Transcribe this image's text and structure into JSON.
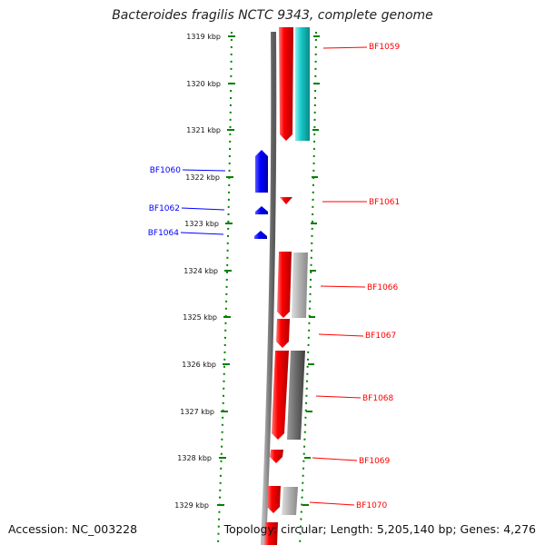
{
  "title": "Bacteroides fragilis NCTC 9343, complete genome",
  "footer": {
    "accession": "Accession: NC_003228",
    "summary": "Topology: circular; Length: 5,205,140 bp; Genes: 4,276"
  },
  "ruler": {
    "ticks": [
      "1319 kbp",
      "1320 kbp",
      "1321 kbp",
      "1322 kbp",
      "1323 kbp",
      "1324 kbp",
      "1325 kbp",
      "1326 kbp",
      "1327 kbp",
      "1328 kbp",
      "1329 kbp"
    ]
  },
  "genes": {
    "forward": [
      {
        "label": "BF1060"
      },
      {
        "label": "BF1062"
      },
      {
        "label": "BF1064"
      }
    ],
    "reverse": [
      {
        "label": "BF1059"
      },
      {
        "label": "BF1061"
      },
      {
        "label": "BF1066"
      },
      {
        "label": "BF1067"
      },
      {
        "label": "BF1068"
      },
      {
        "label": "BF1069"
      },
      {
        "label": "BF1070"
      }
    ]
  },
  "colors": {
    "forward_gene": "#0000ff",
    "reverse_gene": "#ff0000",
    "backbone": "#808080",
    "ruler_dots": "#008000",
    "cyan_feature": "#18c8c8",
    "gray_feature_light": "#b0b0b0",
    "gray_feature_dark": "#6a6a6a"
  }
}
